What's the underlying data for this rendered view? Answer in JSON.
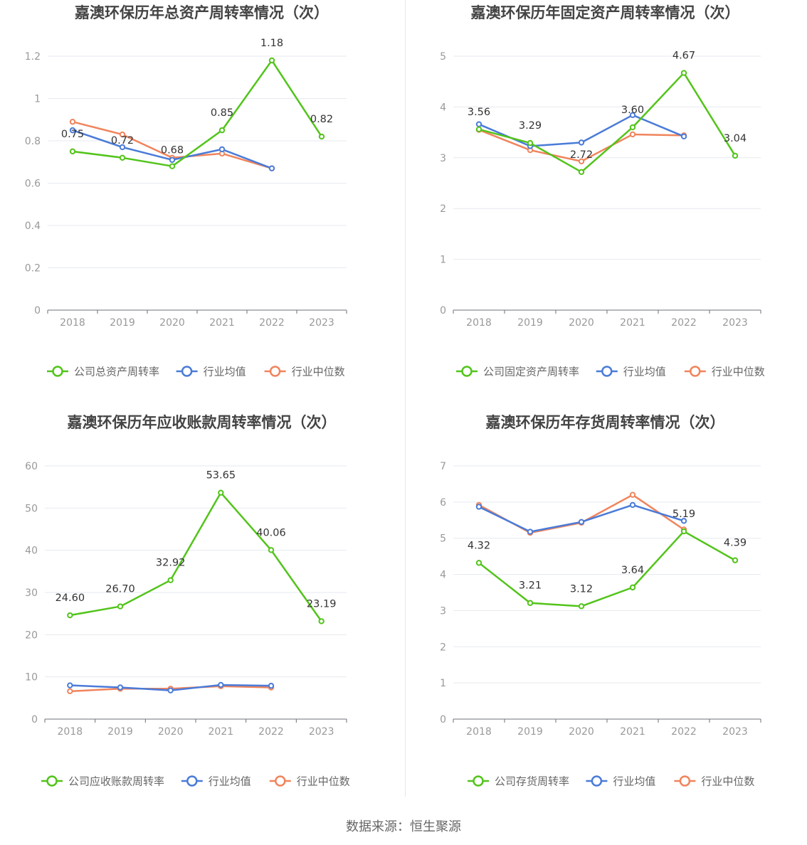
{
  "colors": {
    "company": "#52c41a",
    "avg": "#4a7bd8",
    "median": "#f0845c",
    "grid": "#e6e9f0",
    "axis": "#6e7079"
  },
  "source": "数据来源：恒生聚源",
  "chart_data": [
    {
      "type": "line",
      "title": "嘉澳环保历年总资产周转率情况（次）",
      "categories": [
        "2018",
        "2019",
        "2020",
        "2021",
        "2022",
        "2023"
      ],
      "ylim": [
        0,
        1.2
      ],
      "yticks": [
        0,
        0.2,
        0.4,
        0.6,
        0.8,
        1,
        1.2
      ],
      "ytick_labels": [
        "0",
        "0.2",
        "0.4",
        "0.6",
        "0.8",
        "1",
        "1.2"
      ],
      "series": [
        {
          "name": "公司总资产周转率",
          "role": "company",
          "values": [
            0.75,
            0.72,
            0.68,
            0.85,
            1.18,
            0.82
          ],
          "labels": [
            "0.75",
            "0.72",
            "0.68",
            "0.85",
            "1.18",
            "0.82"
          ]
        },
        {
          "name": "行业均值",
          "role": "avg",
          "values": [
            0.85,
            0.77,
            0.71,
            0.76,
            0.67,
            null
          ]
        },
        {
          "name": "行业中位数",
          "role": "median",
          "values": [
            0.89,
            0.83,
            0.72,
            0.74,
            0.67,
            null
          ]
        }
      ]
    },
    {
      "type": "line",
      "title": "嘉澳环保历年固定资产周转率情况（次）",
      "categories": [
        "2018",
        "2019",
        "2020",
        "2021",
        "2022",
        "2023"
      ],
      "ylim": [
        0,
        5
      ],
      "yticks": [
        0,
        1,
        2,
        3,
        4,
        5
      ],
      "ytick_labels": [
        "0",
        "1",
        "2",
        "3",
        "4",
        "5"
      ],
      "series": [
        {
          "name": "公司固定资产周转率",
          "role": "company",
          "values": [
            3.56,
            3.29,
            2.72,
            3.6,
            4.67,
            3.04
          ],
          "labels": [
            "3.56",
            "3.29",
            "2.72",
            "3.60",
            "4.67",
            "3.04"
          ]
        },
        {
          "name": "行业均值",
          "role": "avg",
          "values": [
            3.66,
            3.23,
            3.3,
            3.84,
            3.42,
            null
          ]
        },
        {
          "name": "行业中位数",
          "role": "median",
          "values": [
            3.55,
            3.15,
            2.93,
            3.46,
            3.44,
            null
          ]
        }
      ]
    },
    {
      "type": "line",
      "title": "嘉澳环保历年应收账款周转率情况（次）",
      "categories": [
        "2018",
        "2019",
        "2020",
        "2021",
        "2022",
        "2023"
      ],
      "ylim": [
        0,
        60
      ],
      "yticks": [
        0,
        10,
        20,
        30,
        40,
        50,
        60
      ],
      "ytick_labels": [
        "0",
        "10",
        "20",
        "30",
        "40",
        "50",
        "60"
      ],
      "series": [
        {
          "name": "公司应收账款周转率",
          "role": "company",
          "values": [
            24.6,
            26.7,
            32.92,
            53.65,
            40.06,
            23.19
          ],
          "labels": [
            "24.60",
            "26.70",
            "32.92",
            "53.65",
            "40.06",
            "23.19"
          ]
        },
        {
          "name": "行业均值",
          "role": "avg",
          "values": [
            8.0,
            7.5,
            6.8,
            8.1,
            7.9,
            null
          ]
        },
        {
          "name": "行业中位数",
          "role": "median",
          "values": [
            6.6,
            7.2,
            7.2,
            7.8,
            7.5,
            null
          ]
        }
      ]
    },
    {
      "type": "line",
      "title": "嘉澳环保历年存货周转率情况（次）",
      "categories": [
        "2018",
        "2019",
        "2020",
        "2021",
        "2022",
        "2023"
      ],
      "ylim": [
        0,
        7
      ],
      "yticks": [
        0,
        1,
        2,
        3,
        4,
        5,
        6,
        7
      ],
      "ytick_labels": [
        "0",
        "1",
        "2",
        "3",
        "4",
        "5",
        "6",
        "7"
      ],
      "series": [
        {
          "name": "公司存货周转率",
          "role": "company",
          "values": [
            4.32,
            3.21,
            3.12,
            3.64,
            5.19,
            4.39
          ],
          "labels": [
            "4.32",
            "3.21",
            "3.12",
            "3.64",
            "5.19",
            "4.39"
          ]
        },
        {
          "name": "行业均值",
          "role": "avg",
          "values": [
            5.87,
            5.18,
            5.45,
            5.92,
            5.48,
            null
          ]
        },
        {
          "name": "行业中位数",
          "role": "median",
          "values": [
            5.92,
            5.15,
            5.43,
            6.2,
            5.24,
            null
          ]
        }
      ]
    }
  ]
}
